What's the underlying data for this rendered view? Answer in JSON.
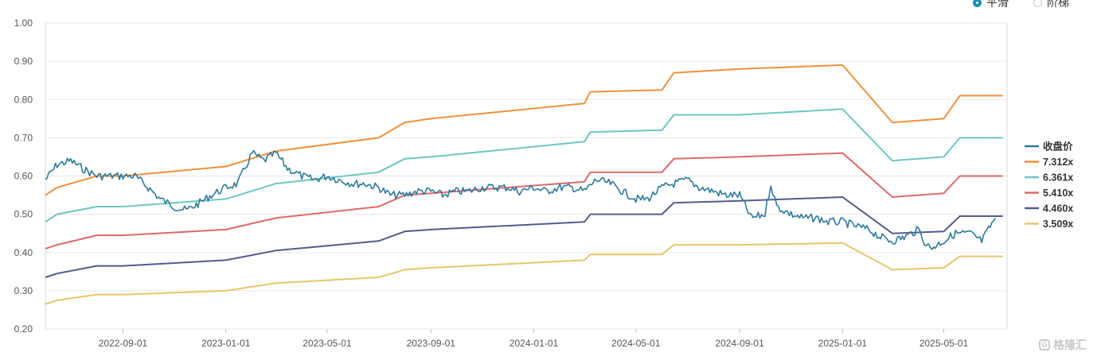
{
  "toggles": {
    "smooth_label": "平滑",
    "step_label": "阶梯",
    "selected": "smooth"
  },
  "watermark": {
    "text": "格隆汇"
  },
  "colors": {
    "close": "#2b7a9e",
    "b1": "#f0913a",
    "b2": "#6cc7c3",
    "b3": "#e0686a",
    "b4": "#535b8e",
    "b5": "#e8c66a",
    "grid": "#e8e8e8",
    "axis_text": "#555555"
  },
  "chart_data": {
    "type": "line",
    "title": "",
    "xlabel": "",
    "ylabel": "",
    "ylim": [
      0.2,
      1.0
    ],
    "yticks": [
      "0.20",
      "0.30",
      "0.40",
      "0.50",
      "0.60",
      "0.70",
      "0.80",
      "0.90",
      "1.00"
    ],
    "xlim": [
      "2022-06-01",
      "2025-07-15"
    ],
    "xticks": [
      "2022-09-01",
      "2023-01-01",
      "2023-05-01",
      "2023-09-01",
      "2024-01-01",
      "2024-05-01",
      "2024-09-01",
      "2025-01-01",
      "2025-05-01"
    ],
    "grid": true,
    "legend_position": "right",
    "series": [
      {
        "name": "收盘价",
        "color_key": "close",
        "noisy": true,
        "x": [
          "2022-06-01",
          "2022-06-15",
          "2022-07-01",
          "2022-07-15",
          "2022-08-01",
          "2022-08-15",
          "2022-09-01",
          "2022-09-15",
          "2022-10-01",
          "2022-10-15",
          "2022-11-01",
          "2022-11-15",
          "2022-12-01",
          "2022-12-15",
          "2023-01-01",
          "2023-01-15",
          "2023-02-01",
          "2023-02-15",
          "2023-03-01",
          "2023-03-15",
          "2023-04-01",
          "2023-04-15",
          "2023-05-01",
          "2023-05-15",
          "2023-06-01",
          "2023-06-15",
          "2023-07-01",
          "2023-07-15",
          "2023-08-01",
          "2023-08-15",
          "2023-09-01",
          "2023-09-15",
          "2023-10-01",
          "2023-10-15",
          "2023-11-01",
          "2023-11-15",
          "2023-12-01",
          "2023-12-15",
          "2024-01-01",
          "2024-01-15",
          "2024-02-01",
          "2024-02-15",
          "2024-03-01",
          "2024-03-15",
          "2024-04-01",
          "2024-04-15",
          "2024-05-01",
          "2024-05-15",
          "2024-06-01",
          "2024-06-15",
          "2024-07-01",
          "2024-07-15",
          "2024-08-01",
          "2024-08-15",
          "2024-09-01",
          "2024-09-15",
          "2024-10-01",
          "2024-10-08",
          "2024-10-15",
          "2024-11-01",
          "2024-11-15",
          "2024-12-01",
          "2024-12-15",
          "2025-01-01",
          "2025-01-15",
          "2025-02-01",
          "2025-02-15",
          "2025-03-01",
          "2025-03-15",
          "2025-04-01",
          "2025-04-08",
          "2025-04-15",
          "2025-05-01",
          "2025-05-15",
          "2025-06-01",
          "2025-06-15",
          "2025-07-01"
        ],
        "values": [
          0.59,
          0.63,
          0.64,
          0.62,
          0.6,
          0.6,
          0.6,
          0.6,
          0.57,
          0.54,
          0.52,
          0.51,
          0.53,
          0.55,
          0.57,
          0.58,
          0.66,
          0.64,
          0.66,
          0.62,
          0.6,
          0.59,
          0.6,
          0.59,
          0.58,
          0.58,
          0.57,
          0.55,
          0.55,
          0.56,
          0.56,
          0.55,
          0.56,
          0.56,
          0.57,
          0.57,
          0.57,
          0.56,
          0.57,
          0.56,
          0.57,
          0.57,
          0.56,
          0.59,
          0.58,
          0.56,
          0.54,
          0.54,
          0.57,
          0.58,
          0.59,
          0.57,
          0.56,
          0.55,
          0.55,
          0.49,
          0.5,
          0.58,
          0.52,
          0.5,
          0.49,
          0.49,
          0.48,
          0.48,
          0.47,
          0.46,
          0.44,
          0.43,
          0.44,
          0.46,
          0.43,
          0.41,
          0.43,
          0.45,
          0.45,
          0.43,
          0.49
        ]
      },
      {
        "name": "7.312x",
        "color_key": "b1",
        "x": [
          "2022-06-01",
          "2022-06-15",
          "2022-08-01",
          "2022-09-01",
          "2023-01-01",
          "2023-03-01",
          "2023-07-01",
          "2023-08-01",
          "2023-09-01",
          "2024-03-01",
          "2024-03-08",
          "2024-06-01",
          "2024-06-15",
          "2024-09-01",
          "2025-01-01",
          "2025-03-01",
          "2025-05-01",
          "2025-05-20",
          "2025-07-10"
        ],
        "values": [
          0.55,
          0.57,
          0.6,
          0.6,
          0.625,
          0.665,
          0.7,
          0.74,
          0.75,
          0.79,
          0.82,
          0.825,
          0.87,
          0.88,
          0.89,
          0.74,
          0.75,
          0.81,
          0.81
        ]
      },
      {
        "name": "6.361x",
        "color_key": "b2",
        "x": [
          "2022-06-01",
          "2022-06-15",
          "2022-08-01",
          "2022-09-01",
          "2023-01-01",
          "2023-03-01",
          "2023-07-01",
          "2023-08-01",
          "2023-09-01",
          "2024-03-01",
          "2024-03-08",
          "2024-06-01",
          "2024-06-15",
          "2024-09-01",
          "2025-01-01",
          "2025-03-01",
          "2025-05-01",
          "2025-05-20",
          "2025-07-10"
        ],
        "values": [
          0.48,
          0.5,
          0.52,
          0.52,
          0.54,
          0.58,
          0.61,
          0.645,
          0.65,
          0.69,
          0.715,
          0.72,
          0.76,
          0.76,
          0.775,
          0.64,
          0.65,
          0.7,
          0.7
        ]
      },
      {
        "name": "5.410x",
        "color_key": "b3",
        "x": [
          "2022-06-01",
          "2022-06-15",
          "2022-08-01",
          "2022-09-01",
          "2023-01-01",
          "2023-03-01",
          "2023-07-01",
          "2023-08-01",
          "2023-09-01",
          "2024-03-01",
          "2024-03-08",
          "2024-06-01",
          "2024-06-15",
          "2024-09-01",
          "2025-01-01",
          "2025-03-01",
          "2025-05-01",
          "2025-05-20",
          "2025-07-10"
        ],
        "values": [
          0.41,
          0.42,
          0.445,
          0.445,
          0.46,
          0.49,
          0.52,
          0.55,
          0.555,
          0.585,
          0.61,
          0.61,
          0.645,
          0.65,
          0.66,
          0.545,
          0.555,
          0.6,
          0.6
        ]
      },
      {
        "name": "4.460x",
        "color_key": "b4",
        "x": [
          "2022-06-01",
          "2022-06-15",
          "2022-08-01",
          "2022-09-01",
          "2023-01-01",
          "2023-03-01",
          "2023-07-01",
          "2023-08-01",
          "2023-09-01",
          "2024-03-01",
          "2024-03-08",
          "2024-06-01",
          "2024-06-15",
          "2024-09-01",
          "2025-01-01",
          "2025-03-01",
          "2025-05-01",
          "2025-05-20",
          "2025-07-10"
        ],
        "values": [
          0.335,
          0.345,
          0.365,
          0.365,
          0.38,
          0.405,
          0.43,
          0.455,
          0.46,
          0.48,
          0.5,
          0.5,
          0.53,
          0.535,
          0.545,
          0.45,
          0.455,
          0.495,
          0.495
        ]
      },
      {
        "name": "3.509x",
        "color_key": "b5",
        "x": [
          "2022-06-01",
          "2022-06-15",
          "2022-08-01",
          "2022-09-01",
          "2023-01-01",
          "2023-03-01",
          "2023-07-01",
          "2023-08-01",
          "2023-09-01",
          "2024-03-01",
          "2024-03-08",
          "2024-06-01",
          "2024-06-15",
          "2024-09-01",
          "2025-01-01",
          "2025-03-01",
          "2025-05-01",
          "2025-05-20",
          "2025-07-10"
        ],
        "values": [
          0.265,
          0.275,
          0.29,
          0.29,
          0.3,
          0.32,
          0.335,
          0.355,
          0.36,
          0.38,
          0.395,
          0.395,
          0.42,
          0.42,
          0.425,
          0.355,
          0.36,
          0.39,
          0.39
        ]
      }
    ]
  }
}
